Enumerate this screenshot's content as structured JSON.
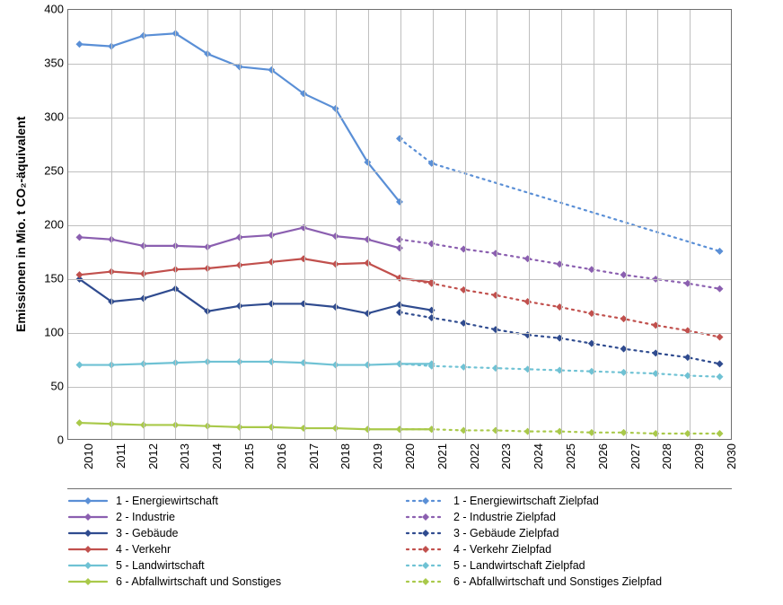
{
  "chart": {
    "type": "line",
    "ylabel": "Emissionen in Mio. t CO₂-äquivalent",
    "ylim": [
      0,
      400
    ],
    "ytick_step": 50,
    "xcategories": [
      "2010",
      "2011",
      "2012",
      "2013",
      "2014",
      "2015",
      "2016",
      "2017",
      "2018",
      "2019",
      "2020",
      "2021",
      "2022",
      "2023",
      "2024",
      "2025",
      "2026",
      "2027",
      "2028",
      "2029",
      "2030"
    ],
    "grid_color": "#bfbfbf",
    "border_color": "#6f6f6f",
    "background_color": "#ffffff",
    "marker_size": 4,
    "line_width": 2.2,
    "series": [
      {
        "key": "s1",
        "label": "1 - Energiewirtschaft",
        "color": "#5a8fd6",
        "dashed": false,
        "start": 0,
        "values": [
          368,
          366,
          376,
          378,
          359,
          347,
          344,
          322,
          308,
          258,
          221
        ]
      },
      {
        "key": "s1z",
        "label": "1 - Energiewirtschaft Zielpfad",
        "color": "#5a8fd6",
        "dashed": true,
        "start": 10,
        "values": [
          280,
          257,
          null,
          null,
          null,
          null,
          null,
          null,
          null,
          null,
          175
        ]
      },
      {
        "key": "s2",
        "label": "2 - Industrie",
        "color": "#8b5fb0",
        "dashed": false,
        "start": 0,
        "values": [
          188,
          186,
          180,
          180,
          179,
          188,
          190,
          197,
          189,
          186,
          178
        ]
      },
      {
        "key": "s2z",
        "label": "2 - Industrie Zielpfad",
        "color": "#8b5fb0",
        "dashed": true,
        "start": 10,
        "values": [
          186,
          182,
          177,
          173,
          168,
          163,
          158,
          153,
          149,
          145,
          140
        ]
      },
      {
        "key": "s3",
        "label": "3 - Gebäude",
        "color": "#2f4b8f",
        "dashed": false,
        "start": 0,
        "values": [
          149,
          128,
          131,
          140,
          119,
          124,
          126,
          126,
          123,
          117,
          125,
          120
        ]
      },
      {
        "key": "s3z",
        "label": "3 - Gebäude Zielpfad",
        "color": "#2f4b8f",
        "dashed": true,
        "start": 10,
        "values": [
          118,
          113,
          108,
          102,
          97,
          94,
          89,
          84,
          80,
          76,
          70
        ]
      },
      {
        "key": "s4",
        "label": "4 - Verkehr",
        "color": "#c1504d",
        "dashed": false,
        "start": 0,
        "values": [
          153,
          156,
          154,
          158,
          159,
          162,
          165,
          168,
          163,
          164,
          150,
          146
        ]
      },
      {
        "key": "s4z",
        "label": "4 - Verkehr Zielpfad",
        "color": "#c1504d",
        "dashed": true,
        "start": 10,
        "values": [
          150,
          145,
          139,
          134,
          128,
          123,
          117,
          112,
          106,
          101,
          95
        ]
      },
      {
        "key": "s5",
        "label": "5 - Landwirtschaft",
        "color": "#6fc2d4",
        "dashed": false,
        "start": 0,
        "values": [
          69,
          69,
          70,
          71,
          72,
          72,
          72,
          71,
          69,
          69,
          70,
          70
        ]
      },
      {
        "key": "s5z",
        "label": "5 - Landwirtschaft Zielpfad",
        "color": "#6fc2d4",
        "dashed": true,
        "start": 10,
        "values": [
          70,
          68,
          67,
          66,
          65,
          64,
          63,
          62,
          61,
          59,
          58
        ]
      },
      {
        "key": "s6",
        "label": "6 - Abfallwirtschaft und Sonstiges",
        "color": "#a9c94a",
        "dashed": false,
        "start": 0,
        "values": [
          15,
          14,
          13,
          13,
          12,
          11,
          11,
          10,
          10,
          9,
          9,
          9
        ]
      },
      {
        "key": "s6z",
        "label": "6 - Abfallwirtschaft und Sonstiges Zielpfad",
        "color": "#a9c94a",
        "dashed": true,
        "start": 10,
        "values": [
          9,
          9,
          8,
          8,
          7,
          7,
          6,
          6,
          5,
          5,
          5
        ]
      }
    ],
    "legend_order": [
      "s1",
      "s1z",
      "s2",
      "s2z",
      "s3",
      "s3z",
      "s4",
      "s4z",
      "s5",
      "s5z",
      "s6",
      "s6z"
    ]
  }
}
